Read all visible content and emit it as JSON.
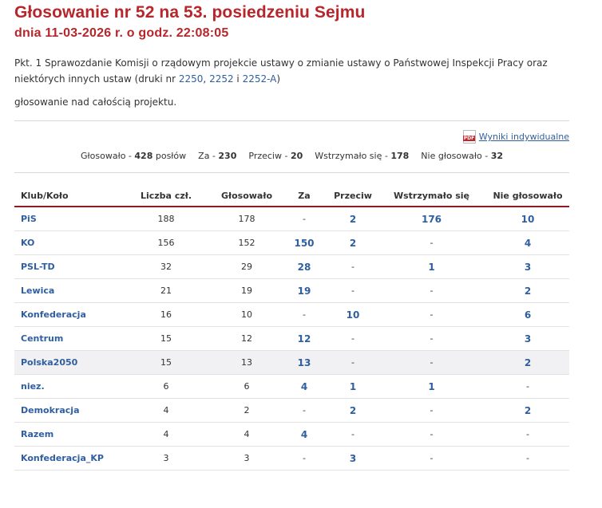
{
  "header": {
    "title": "Głosowanie nr 52 na 53. posiedzeniu Sejmu",
    "subtitle": "dnia 11-03-2026 r. o godz. 22:08:05"
  },
  "point": {
    "text": "Pkt. 1 Sprawozdanie Komisji o rządowym projekcie ustawy o zmianie ustawy o Państwowej Inspekcji Pracy oraz niektórych innych ustaw (druki nr ",
    "link1": "2250",
    "sep1": ", ",
    "link2": "2252",
    "sep2": " i ",
    "link3": "2252-A",
    "end": ")"
  },
  "vote_description": "głosowanie nad całością projektu.",
  "results_link": {
    "icon": "pdf-icon",
    "icon_text": "PDF",
    "label": "Wyniki indywidualne"
  },
  "summary": {
    "voted_label": "Głosowało - ",
    "voted": "428",
    "voted_unit": " posłów",
    "for_label": "Za - ",
    "for": "230",
    "against_label": "Przeciw - ",
    "against": "20",
    "abstain_label": "Wstrzymało się - ",
    "abstain": "178",
    "notvoted_label": "Nie głosowało - ",
    "notvoted": "32"
  },
  "table": {
    "headers": [
      "Klub/Koło",
      "Liczba czł.",
      "Głosowało",
      "Za",
      "Przeciw",
      "Wstrzymało się",
      "Nie głosowało"
    ],
    "rows": [
      [
        "PiS",
        "188",
        "178",
        "-",
        "2",
        "176",
        "10"
      ],
      [
        "KO",
        "156",
        "152",
        "150",
        "2",
        "-",
        "4"
      ],
      [
        "PSL-TD",
        "32",
        "29",
        "28",
        "-",
        "1",
        "3"
      ],
      [
        "Lewica",
        "21",
        "19",
        "19",
        "-",
        "-",
        "2"
      ],
      [
        "Konfederacja",
        "16",
        "10",
        "-",
        "10",
        "-",
        "6"
      ],
      [
        "Centrum",
        "15",
        "12",
        "12",
        "-",
        "-",
        "3"
      ],
      [
        "Polska2050",
        "15",
        "13",
        "13",
        "-",
        "-",
        "2"
      ],
      [
        "niez.",
        "6",
        "6",
        "4",
        "1",
        "1",
        "-"
      ],
      [
        "Demokracja",
        "4",
        "2",
        "-",
        "2",
        "-",
        "2"
      ],
      [
        "Razem",
        "4",
        "4",
        "4",
        "-",
        "-",
        "-"
      ],
      [
        "Konfederacja_KP",
        "3",
        "3",
        "-",
        "3",
        "-",
        "-"
      ]
    ],
    "highlighted_row": "Polska2050"
  },
  "colors": {
    "title": "#b7262b",
    "link": "#2f5fa0",
    "header_rule": "#8b1c24"
  }
}
